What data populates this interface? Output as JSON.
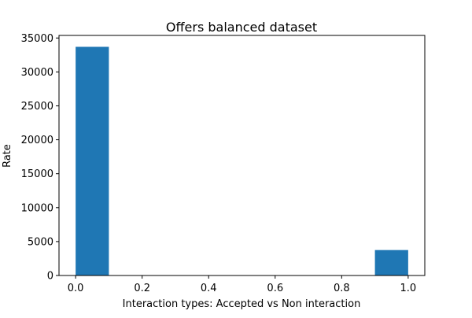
{
  "chart_data": {
    "type": "bar",
    "title": "Offers balanced dataset",
    "xlabel": "Interaction types: Accepted vs Non interaction",
    "ylabel": "Rate",
    "bins": [
      {
        "x0": 0.0,
        "x1": 0.1,
        "value": 33700
      },
      {
        "x0": 0.9,
        "x1": 1.0,
        "value": 3750
      }
    ],
    "xlim": [
      -0.05,
      1.05
    ],
    "ylim": [
      0,
      35380
    ],
    "xticks": [
      0.0,
      0.2,
      0.4,
      0.6,
      0.8,
      1.0
    ],
    "xtick_labels": [
      "0.0",
      "0.2",
      "0.4",
      "0.6",
      "0.8",
      "1.0"
    ],
    "yticks": [
      0,
      5000,
      10000,
      15000,
      20000,
      25000,
      30000,
      35000
    ],
    "ytick_labels": [
      "0",
      "5000",
      "10000",
      "15000",
      "20000",
      "25000",
      "30000",
      "35000"
    ],
    "bar_color": "#1f77b4",
    "grid": false,
    "legend": "none"
  }
}
